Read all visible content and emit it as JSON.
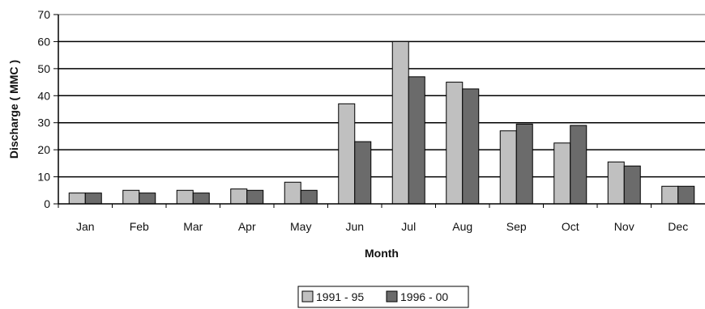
{
  "chart_data": {
    "type": "bar",
    "title": "",
    "xlabel": "Month",
    "ylabel": "Discharge ( MMC )",
    "ylim": [
      0,
      70
    ],
    "yticks": [
      0,
      10,
      20,
      30,
      40,
      50,
      60,
      70
    ],
    "grid": true,
    "legend_position": "bottom-center",
    "categories": [
      "Jan",
      "Feb",
      "Mar",
      "Apr",
      "May",
      "Jun",
      "Jul",
      "Aug",
      "Sep",
      "Oct",
      "Nov",
      "Dec"
    ],
    "series": [
      {
        "name": "1991 - 95",
        "color": "#c0c0c0",
        "values": [
          4,
          5,
          5,
          5.5,
          8,
          37,
          60,
          45,
          27,
          22.5,
          15.5,
          6.5
        ]
      },
      {
        "name": "1996 - 00",
        "color": "#6b6b6b",
        "values": [
          4,
          4,
          4,
          5,
          5,
          23,
          47,
          42.5,
          29.5,
          29,
          14,
          6.5
        ]
      }
    ]
  }
}
